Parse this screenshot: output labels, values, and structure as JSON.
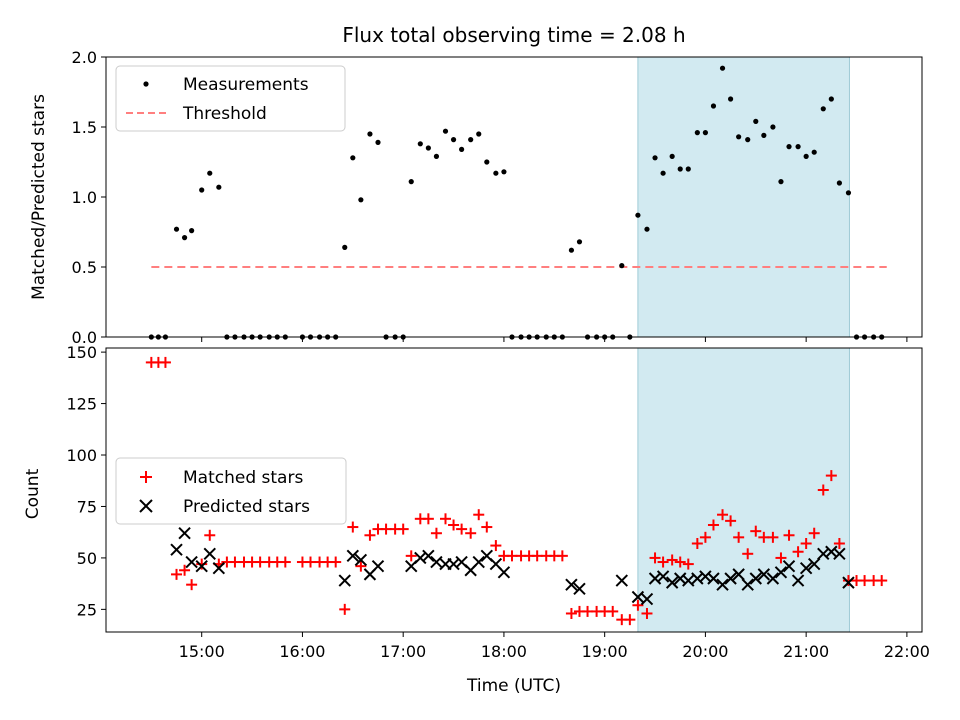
{
  "chart_data": {
    "title": "Flux total observing time = 2.08 h",
    "xlabel": "Time (UTC)",
    "x_tick_labels": [
      "15:00",
      "16:00",
      "17:00",
      "18:00",
      "19:00",
      "20:00",
      "21:00",
      "22:00"
    ],
    "x_tick_hours": [
      15,
      16,
      17,
      18,
      19,
      20,
      21,
      22
    ],
    "xlim_hours": [
      14.05,
      22.15
    ],
    "shaded_span_hours": [
      19.33,
      21.43
    ],
    "shade_color": "#add8e6",
    "panels": [
      {
        "type": "scatter",
        "ylabel": "Matched/Predicted stars",
        "ylim": [
          0,
          2.0
        ],
        "y_ticks": [
          0.0,
          0.5,
          1.0,
          1.5,
          2.0
        ],
        "y_tick_labels": [
          "0.0",
          "0.5",
          "1.0",
          "1.5",
          "2.0"
        ],
        "legend": [
          "Measurements",
          "Threshold"
        ],
        "legend_loc": "upper left",
        "series": [
          {
            "name": "Measurements",
            "color": "#000000",
            "marker": "dot",
            "x_hours": [
              14.5,
              14.57,
              14.64,
              14.75,
              14.83,
              14.9,
              15.0,
              15.08,
              15.17,
              15.25,
              15.33,
              15.42,
              15.5,
              15.58,
              15.67,
              15.75,
              15.83,
              16.0,
              16.08,
              16.17,
              16.25,
              16.33,
              16.42,
              16.5,
              16.58,
              16.67,
              16.75,
              16.83,
              16.92,
              17.0,
              17.08,
              17.17,
              17.25,
              17.33,
              17.42,
              17.5,
              17.58,
              17.67,
              17.75,
              17.83,
              17.92,
              18.0,
              18.08,
              18.17,
              18.25,
              18.33,
              18.42,
              18.5,
              18.58,
              18.67,
              18.75,
              18.83,
              18.92,
              19.0,
              19.08,
              19.17,
              19.25,
              19.33,
              19.42,
              19.5,
              19.58,
              19.67,
              19.75,
              19.83,
              19.92,
              20.0,
              20.08,
              20.17,
              20.25,
              20.33,
              20.42,
              20.5,
              20.58,
              20.67,
              20.75,
              20.83,
              20.92,
              21.0,
              21.08,
              21.17,
              21.25,
              21.33,
              21.42,
              21.5,
              21.58,
              21.67,
              21.75
            ],
            "y": [
              0.0,
              0.0,
              0.0,
              0.77,
              0.71,
              0.76,
              1.05,
              1.17,
              1.07,
              0.0,
              0.0,
              0.0,
              0.0,
              0.0,
              0.0,
              0.0,
              0.0,
              0.0,
              0.0,
              0.0,
              0.0,
              0.0,
              0.64,
              1.28,
              0.98,
              1.45,
              1.39,
              0.0,
              0.0,
              0.0,
              1.11,
              1.38,
              1.35,
              1.29,
              1.47,
              1.41,
              1.34,
              1.41,
              1.45,
              1.25,
              1.17,
              1.18,
              0.0,
              0.0,
              0.0,
              0.0,
              0.0,
              0.0,
              0.0,
              0.62,
              0.68,
              0.0,
              0.0,
              0.0,
              0.0,
              0.51,
              0.0,
              0.87,
              0.77,
              1.28,
              1.17,
              1.29,
              1.2,
              1.2,
              1.46,
              1.46,
              1.65,
              1.92,
              1.7,
              1.43,
              1.41,
              1.54,
              1.44,
              1.5,
              1.11,
              1.36,
              1.36,
              1.29,
              1.32,
              1.63,
              1.7,
              1.1,
              1.03,
              0.0,
              0.0,
              0.0,
              0.0
            ]
          },
          {
            "name": "Threshold",
            "color": "#ff7f7f",
            "style": "dashed",
            "x_hours": [
              14.5,
              21.8
            ],
            "y": [
              0.5,
              0.5
            ]
          }
        ]
      },
      {
        "type": "scatter",
        "ylabel": "Count",
        "ylim": [
          14,
          152
        ],
        "y_ticks": [
          25,
          50,
          75,
          100,
          125,
          150
        ],
        "y_tick_labels": [
          "25",
          "50",
          "75",
          "100",
          "125",
          "150"
        ],
        "legend": [
          "Matched stars",
          "Predicted stars"
        ],
        "legend_loc": "center left",
        "series": [
          {
            "name": "Matched stars",
            "color": "#ff0000",
            "marker": "plus",
            "x_hours": [
              14.5,
              14.57,
              14.64,
              14.75,
              14.83,
              14.9,
              15.0,
              15.08,
              15.17,
              15.25,
              15.33,
              15.42,
              15.5,
              15.58,
              15.67,
              15.75,
              15.83,
              16.0,
              16.08,
              16.17,
              16.25,
              16.33,
              16.42,
              16.5,
              16.58,
              16.67,
              16.75,
              16.83,
              16.92,
              17.0,
              17.08,
              17.17,
              17.25,
              17.33,
              17.42,
              17.5,
              17.58,
              17.67,
              17.75,
              17.83,
              17.92,
              18.0,
              18.08,
              18.17,
              18.25,
              18.33,
              18.42,
              18.5,
              18.58,
              18.67,
              18.75,
              18.83,
              18.92,
              19.0,
              19.08,
              19.17,
              19.25,
              19.33,
              19.42,
              19.5,
              19.58,
              19.67,
              19.75,
              19.83,
              19.92,
              20.0,
              20.08,
              20.17,
              20.25,
              20.33,
              20.42,
              20.5,
              20.58,
              20.67,
              20.75,
              20.83,
              20.92,
              21.0,
              21.08,
              21.17,
              21.25,
              21.33,
              21.42,
              21.5,
              21.58,
              21.67,
              21.75
            ],
            "y": [
              145,
              145,
              145,
              42,
              44,
              37,
              47,
              61,
              47,
              48,
              48,
              48,
              48,
              48,
              48,
              48,
              48,
              48,
              48,
              48,
              48,
              48,
              25,
              65,
              46,
              61,
              64,
              64,
              64,
              64,
              51,
              69,
              69,
              62,
              69,
              66,
              64,
              62,
              71,
              65,
              56,
              51,
              51,
              51,
              51,
              51,
              51,
              51,
              51,
              23,
              24,
              24,
              24,
              24,
              24,
              20,
              20,
              27,
              23,
              50,
              48,
              49,
              48,
              47,
              57,
              60,
              66,
              71,
              68,
              60,
              52,
              63,
              60,
              60,
              50,
              61,
              53,
              57,
              62,
              83,
              90,
              57,
              39,
              39,
              39,
              39,
              39
            ]
          },
          {
            "name": "Predicted stars",
            "color": "#000000",
            "marker": "x",
            "x_hours": [
              14.75,
              14.83,
              14.9,
              15.0,
              15.08,
              15.17,
              16.42,
              16.5,
              16.58,
              16.67,
              16.75,
              17.08,
              17.17,
              17.25,
              17.33,
              17.42,
              17.5,
              17.58,
              17.67,
              17.75,
              17.83,
              17.92,
              18.0,
              18.67,
              18.75,
              19.17,
              19.33,
              19.42,
              19.5,
              19.58,
              19.67,
              19.75,
              19.83,
              19.92,
              20.0,
              20.08,
              20.17,
              20.25,
              20.33,
              20.42,
              20.5,
              20.58,
              20.67,
              20.75,
              20.83,
              20.92,
              21.0,
              21.08,
              21.17,
              21.25,
              21.33,
              21.42
            ],
            "y": [
              54,
              62,
              48,
              46,
              52,
              45,
              39,
              51,
              49,
              42,
              46,
              46,
              50,
              51,
              48,
              47,
              47,
              48,
              44,
              48,
              51,
              47,
              43,
              37,
              35,
              39,
              31,
              30,
              40,
              41,
              38,
              40,
              39,
              40,
              41,
              40,
              37,
              40,
              42,
              37,
              40,
              42,
              40,
              43,
              46,
              39,
              45,
              47,
              52,
              53,
              52,
              38
            ]
          }
        ]
      }
    ]
  }
}
